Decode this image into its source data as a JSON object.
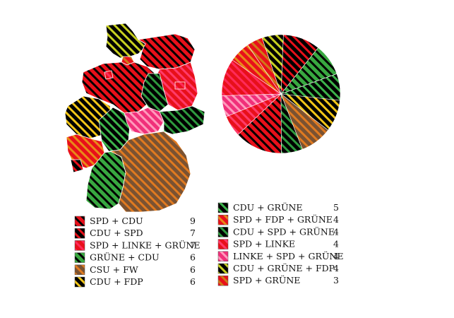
{
  "chart_data": {
    "type": "pie",
    "title": "",
    "legend_placement": "bottom, two columns",
    "categories": [
      {
        "label": "SPD + CDU",
        "value": 9,
        "base": "#e8101a",
        "stripe": "#000000"
      },
      {
        "label": "CDU + SPD",
        "value": 7,
        "base": "#000000",
        "stripe": "#e8101a"
      },
      {
        "label": "SPD + LINKE + GRÜNE",
        "value": 7,
        "base": "#e8101a",
        "stripe": "#ff2a5a"
      },
      {
        "label": "GRÜNE + CDU",
        "value": 6,
        "base": "#38a840",
        "stripe": "#000000"
      },
      {
        "label": "CSU + FW",
        "value": 6,
        "base": "#7a5232",
        "stripe": "#e07a20"
      },
      {
        "label": "CDU + FDP",
        "value": 6,
        "base": "#000000",
        "stripe": "#f2c618"
      },
      {
        "label": "CDU + GRÜNE",
        "value": 5,
        "base": "#000000",
        "stripe": "#3cb34a"
      },
      {
        "label": "SPD + FDP + GRÜNE",
        "value": 4,
        "base": "#e8101a",
        "stripe": "#e88a18"
      },
      {
        "label": "CDU + SPD + GRÜNE",
        "value": 4,
        "base": "#000000",
        "stripe": "#2e9a3e"
      },
      {
        "label": "SPD + LINKE",
        "value": 4,
        "base": "#e8101a",
        "stripe": "#ff3a6a"
      },
      {
        "label": "LINKE + SPD + GRÜNE",
        "value": 4,
        "base": "#f0307a",
        "stripe": "#ff9abb"
      },
      {
        "label": "CDU + GRÜNE + FDP",
        "value": 4,
        "base": "#000000",
        "stripe": "#c8d020"
      },
      {
        "label": "SPD + GRÜNE",
        "value": 3,
        "base": "#e8101a",
        "stripe": "#d07a18"
      }
    ],
    "pie_order": [
      "CDU + SPD",
      "GRÜNE + CDU",
      "CDU + GRÜNE",
      "CDU + FDP",
      "CSU + FW",
      "CDU + SPD + GRÜNE",
      "SPD + CDU",
      "SPD + LINKE",
      "LINKE + SPD + GRÜNE",
      "SPD + LINKE + GRÜNE",
      "SPD + FDP + GRÜNE",
      "SPD + GRÜNE",
      "CDU + GRÜNE + FDP"
    ],
    "map_states": [
      {
        "name": "Schleswig-Holstein",
        "fill": "CDU + GRÜNE + FDP"
      },
      {
        "name": "Hamburg",
        "fill": "SPD + GRÜNE"
      },
      {
        "name": "Mecklenburg-Vorpommern",
        "fill": "SPD + CDU"
      },
      {
        "name": "Bremen",
        "fill": "SPD + LINKE + GRÜNE"
      },
      {
        "name": "Niedersachsen",
        "fill": "SPD + CDU"
      },
      {
        "name": "Sachsen-Anhalt",
        "fill": "CDU + SPD + GRÜNE"
      },
      {
        "name": "Berlin",
        "fill": "SPD + LINKE + GRÜNE"
      },
      {
        "name": "Brandenburg",
        "fill": "SPD + LINKE"
      },
      {
        "name": "Nordrhein-Westfalen",
        "fill": "CDU + FDP"
      },
      {
        "name": "Hessen",
        "fill": "CDU + GRÜNE"
      },
      {
        "name": "Thüringen",
        "fill": "LINKE + SPD + GRÜNE"
      },
      {
        "name": "Sachsen",
        "fill": "CDU + SPD + GRÜNE"
      },
      {
        "name": "Rheinland-Pfalz",
        "fill": "SPD + FDP + GRÜNE"
      },
      {
        "name": "Saarland",
        "fill": "CDU + SPD"
      },
      {
        "name": "Baden-Württemberg",
        "fill": "GRÜNE + CDU"
      },
      {
        "name": "Bayern",
        "fill": "CSU + FW"
      }
    ]
  }
}
